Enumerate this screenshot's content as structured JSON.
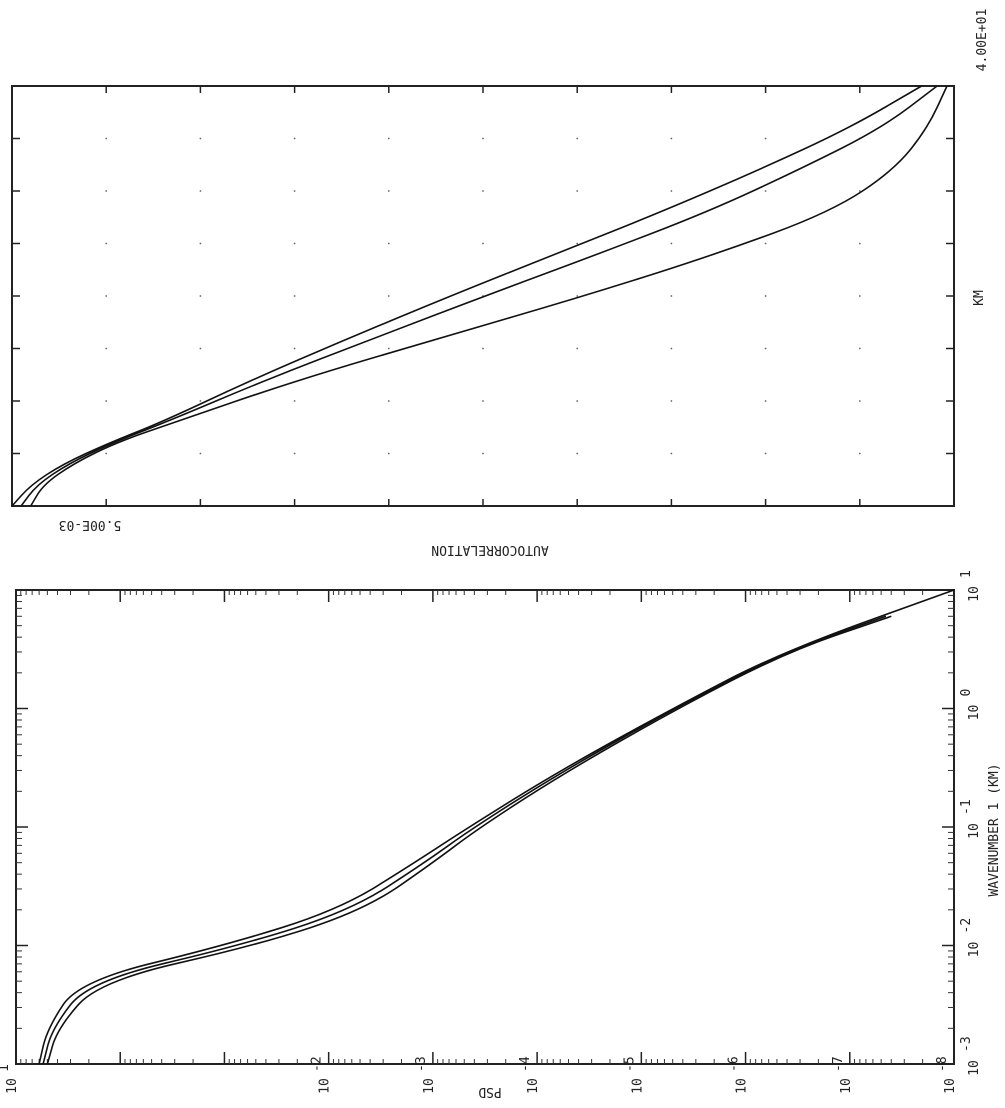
{
  "chart_data": [
    {
      "type": "line",
      "orientation": "rotated 90 degrees clockwise",
      "title": "",
      "xlabel": "KM",
      "ylabel": "AUTOCORRELATION",
      "x_end_label": "4.00E+01",
      "y_end_label": "5.00E-03",
      "xlim": [
        0,
        40
      ],
      "ylim": [
        0.005,
        1
      ],
      "grid": "dotted",
      "series": [
        {
          "values": [
            [
              0,
              1.0
            ],
            [
              2,
              0.9
            ],
            [
              4,
              0.75
            ],
            [
              6,
              0.58
            ],
            [
              8,
              0.43
            ],
            [
              12,
              0.26
            ],
            [
              16,
              0.15
            ],
            [
              20,
              0.085
            ],
            [
              24,
              0.047
            ],
            [
              28,
              0.026
            ],
            [
              32,
              0.015
            ],
            [
              36,
              0.009
            ],
            [
              40,
              0.006
            ]
          ]
        },
        {
          "values": [
            [
              0,
              0.95
            ],
            [
              2,
              0.87
            ],
            [
              4,
              0.73
            ],
            [
              6,
              0.57
            ],
            [
              8,
              0.42
            ],
            [
              12,
              0.24
            ],
            [
              16,
              0.13
            ],
            [
              20,
              0.07
            ],
            [
              24,
              0.037
            ],
            [
              28,
              0.02
            ],
            [
              32,
              0.012
            ],
            [
              36,
              0.0075
            ],
            [
              40,
              0.0055
            ]
          ]
        },
        {
          "values": [
            [
              0,
              0.9
            ],
            [
              2,
              0.84
            ],
            [
              4,
              0.71
            ],
            [
              6,
              0.56
            ],
            [
              8,
              0.4
            ],
            [
              12,
              0.2
            ],
            [
              16,
              0.09
            ],
            [
              20,
              0.04
            ],
            [
              24,
              0.019
            ],
            [
              28,
              0.01
            ],
            [
              32,
              0.007
            ],
            [
              36,
              0.0058
            ],
            [
              40,
              0.0052
            ]
          ]
        }
      ]
    },
    {
      "type": "line",
      "orientation": "rotated 90 degrees clockwise",
      "title": "",
      "xlabel": "WAVENUMBER 1 (KM)",
      "ylabel": "PSD",
      "xscale": "log",
      "yscale": "log",
      "xlim": [
        0.001,
        10
      ],
      "ylim": [
        1e-08,
        10
      ],
      "x_ticks": [
        {
          "base": "10",
          "exp": "-3"
        },
        {
          "base": "10",
          "exp": "-2"
        },
        {
          "base": "10",
          "exp": "-1"
        },
        {
          "base": "10",
          "exp": "0"
        },
        {
          "base": "10",
          "exp": "1"
        }
      ],
      "y_ticks": [
        {
          "base": "10",
          "exp": "1"
        },
        {
          "base": "10",
          "exp": "-2"
        },
        {
          "base": "10",
          "exp": "-3"
        },
        {
          "base": "10",
          "exp": "-4"
        },
        {
          "base": "10",
          "exp": "-5"
        },
        {
          "base": "10",
          "exp": "-6"
        },
        {
          "base": "10",
          "exp": "-7"
        },
        {
          "base": "10",
          "exp": "-8"
        }
      ],
      "series": [
        {
          "values": [
            [
              0.001,
              6.0
            ],
            [
              0.002,
              5.0
            ],
            [
              0.005,
              2.5
            ],
            [
              0.01,
              0.1
            ],
            [
              0.02,
              0.008
            ],
            [
              0.05,
              0.0015
            ],
            [
              0.1,
              0.00045
            ],
            [
              0.3,
              6e-05
            ],
            [
              1,
              5e-06
            ],
            [
              3,
              4.5e-07
            ],
            [
              10,
              1e-08
            ]
          ]
        },
        {
          "values": [
            [
              0.001,
              5.5
            ],
            [
              0.002,
              4.5
            ],
            [
              0.005,
              2.0
            ],
            [
              0.01,
              0.07
            ],
            [
              0.02,
              0.006
            ],
            [
              0.05,
              0.0012
            ],
            [
              0.1,
              0.0004
            ],
            [
              0.3,
              5.5e-05
            ],
            [
              1,
              4.8e-06
            ],
            [
              3,
              4.2e-07
            ],
            [
              6,
              4.5e-08
            ]
          ]
        },
        {
          "values": [
            [
              0.001,
              5.0
            ],
            [
              0.002,
              4.0
            ],
            [
              0.005,
              1.6
            ],
            [
              0.01,
              0.05
            ],
            [
              0.02,
              0.0045
            ],
            [
              0.05,
              0.001
            ],
            [
              0.1,
              0.00035
            ],
            [
              0.3,
              5e-05
            ],
            [
              1,
              4.5e-06
            ],
            [
              3,
              4e-07
            ],
            [
              6,
              4e-08
            ]
          ]
        }
      ]
    }
  ]
}
